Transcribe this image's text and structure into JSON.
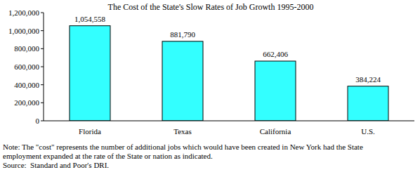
{
  "chart_data": {
    "type": "bar",
    "title": "The Cost of the State's Slow Rates of Job Growth 1995-2000",
    "categories": [
      "Florida",
      "Texas",
      "California",
      "U.S."
    ],
    "values": [
      1054558,
      881790,
      662406,
      384224
    ],
    "value_labels": [
      "1,054,558",
      "881,790",
      "662,406",
      "384,224"
    ],
    "data_labels": true,
    "color": "#33ffff",
    "ylim": [
      0,
      1200000
    ],
    "yticks": [
      0,
      {
        "value": 200000,
        "label": "200,000"
      },
      {
        "value": 400000,
        "label": "400,000"
      },
      {
        "value": 600000,
        "label": "600,000"
      },
      {
        "value": 800000,
        "label": "800,000"
      },
      {
        "value": 1000000,
        "label": "1,000,000"
      },
      {
        "value": 1200000,
        "label": "1,200,000"
      }
    ],
    "grid": false,
    "note": [
      "Note: The \"cost\" represents the number of additional jobs which would have been created in New York had the State",
      "employment expanded at the rate of the State or nation as indicated."
    ],
    "source": "Source:  Standard and Poor's DRI."
  }
}
